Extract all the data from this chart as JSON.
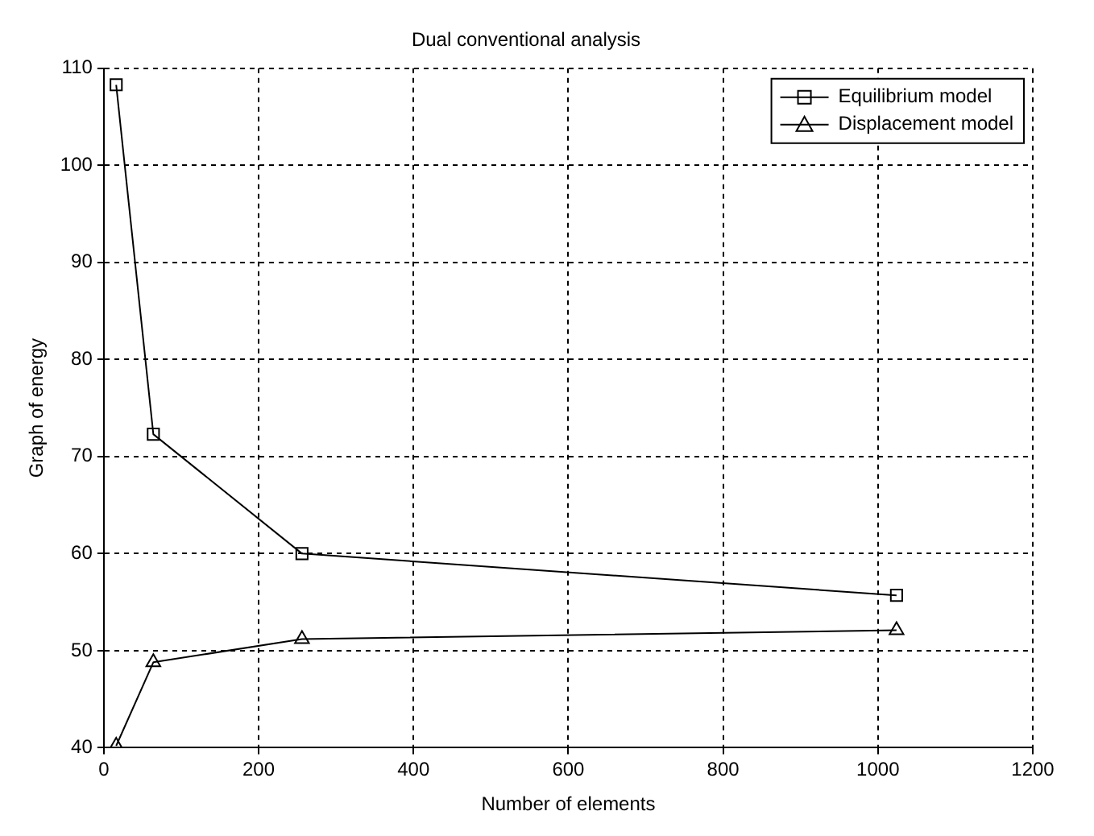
{
  "chart_data": {
    "type": "line",
    "title": "Dual conventional analysis",
    "xlabel": "Number of elements",
    "ylabel": "Graph of energy",
    "x": [
      16,
      64,
      256,
      1024
    ],
    "series": [
      {
        "name": "Equilibrium model",
        "color": "#000000",
        "marker": "square",
        "values": [
          108.3,
          72.3,
          60,
          55.7
        ]
      },
      {
        "name": "Displacement model",
        "color": "#000000",
        "marker": "triangle",
        "values": [
          40.2,
          48.8,
          51.2,
          52.1
        ]
      }
    ],
    "xlim": [
      0,
      1200
    ],
    "xticks": [
      0,
      200,
      400,
      600,
      800,
      1000,
      1200
    ],
    "ylim": [
      40,
      110
    ],
    "yticks": [
      40,
      50,
      60,
      70,
      80,
      90,
      100,
      110
    ],
    "grid": true,
    "legend": "top right",
    "line_style": "solid"
  }
}
